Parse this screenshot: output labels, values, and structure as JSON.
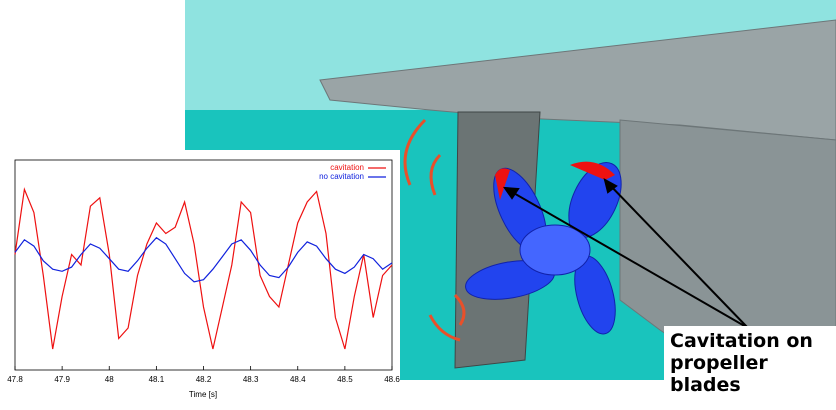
{
  "annotation": "Cavitation on propeller blades",
  "chart_data": {
    "type": "line",
    "x_label": "Time [s]",
    "x": [
      47.8,
      47.82,
      47.84,
      47.86,
      47.88,
      47.9,
      47.92,
      47.94,
      47.96,
      47.98,
      48.0,
      48.02,
      48.04,
      48.06,
      48.08,
      48.1,
      48.12,
      48.14,
      48.16,
      48.18,
      48.2,
      48.22,
      48.24,
      48.26,
      48.28,
      48.3,
      48.32,
      48.34,
      48.36,
      48.38,
      48.4,
      48.42,
      48.44,
      48.46,
      48.48,
      48.5,
      48.52,
      48.54,
      48.56,
      48.58,
      48.6
    ],
    "series": [
      {
        "name": "cavitation",
        "color": "#ee1111",
        "values": [
          5.5,
          8.6,
          7.5,
          4.5,
          1.0,
          3.5,
          5.5,
          5.0,
          7.8,
          8.2,
          5.5,
          1.5,
          2.0,
          4.5,
          6.0,
          7.0,
          6.5,
          6.8,
          8.0,
          6.0,
          3.0,
          1.0,
          3.0,
          5.0,
          8.0,
          7.5,
          4.5,
          3.5,
          3.0,
          5.0,
          7.0,
          8.0,
          8.5,
          6.5,
          2.5,
          1.0,
          3.5,
          5.5,
          2.5,
          4.5,
          5.0
        ]
      },
      {
        "name": "no cavitation",
        "color": "#1122dd",
        "values": [
          5.6,
          6.2,
          5.9,
          5.2,
          4.8,
          4.7,
          4.9,
          5.5,
          6.0,
          5.8,
          5.3,
          4.8,
          4.7,
          5.2,
          5.8,
          6.3,
          6.0,
          5.3,
          4.6,
          4.2,
          4.3,
          4.8,
          5.4,
          6.0,
          6.2,
          5.7,
          5.0,
          4.5,
          4.4,
          4.9,
          5.6,
          6.1,
          5.9,
          5.3,
          4.8,
          4.6,
          4.9,
          5.5,
          5.3,
          4.8,
          5.1
        ]
      }
    ],
    "xlim": [
      47.8,
      48.6
    ],
    "ylim": [
      0,
      10
    ],
    "xticks": [
      47.8,
      47.9,
      48,
      48.1,
      48.2,
      48.3,
      48.4,
      48.5,
      48.6
    ]
  }
}
